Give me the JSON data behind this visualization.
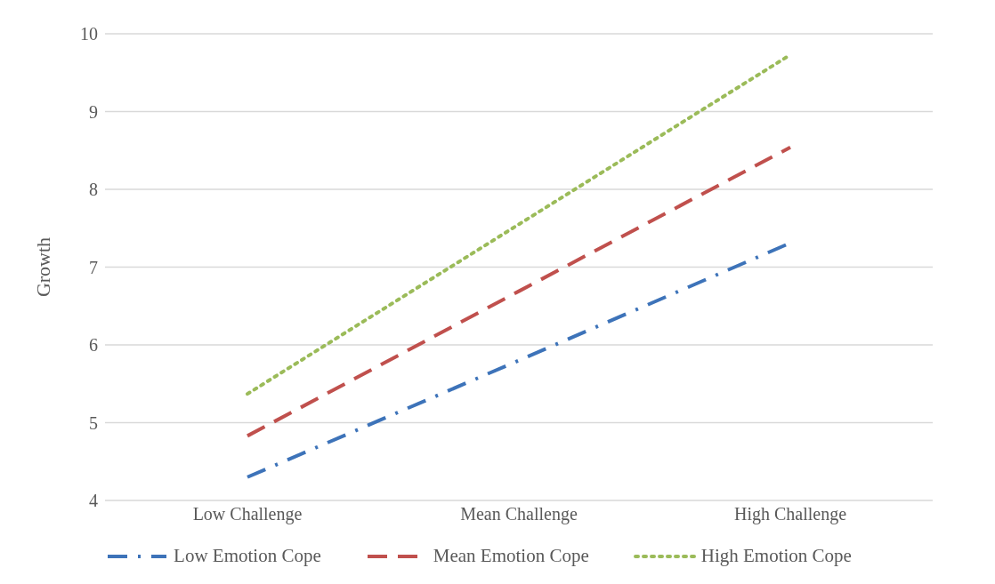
{
  "chart_data": {
    "type": "line",
    "ylabel": "Growth",
    "categories": [
      "Low Challenge",
      "Mean Challenge",
      "High Challenge"
    ],
    "series": [
      {
        "name": "Low Emotion Cope",
        "color": "#3d73b9",
        "values": [
          4.3,
          5.8,
          7.31
        ],
        "line_style": "dashdot"
      },
      {
        "name": "Mean Emotion Cope",
        "color": "#c0504d",
        "values": [
          4.83,
          6.69,
          8.54
        ],
        "line_style": "dashed"
      },
      {
        "name": "High Emotion Cope",
        "color": "#9bbb59",
        "values": [
          5.37,
          7.55,
          9.73
        ],
        "line_style": "dotted"
      }
    ],
    "ylim": [
      4,
      10
    ],
    "yticks": [
      4,
      5,
      6,
      7,
      8,
      9,
      10
    ],
    "grid": "y",
    "legend": "bottom",
    "marker": "none"
  }
}
